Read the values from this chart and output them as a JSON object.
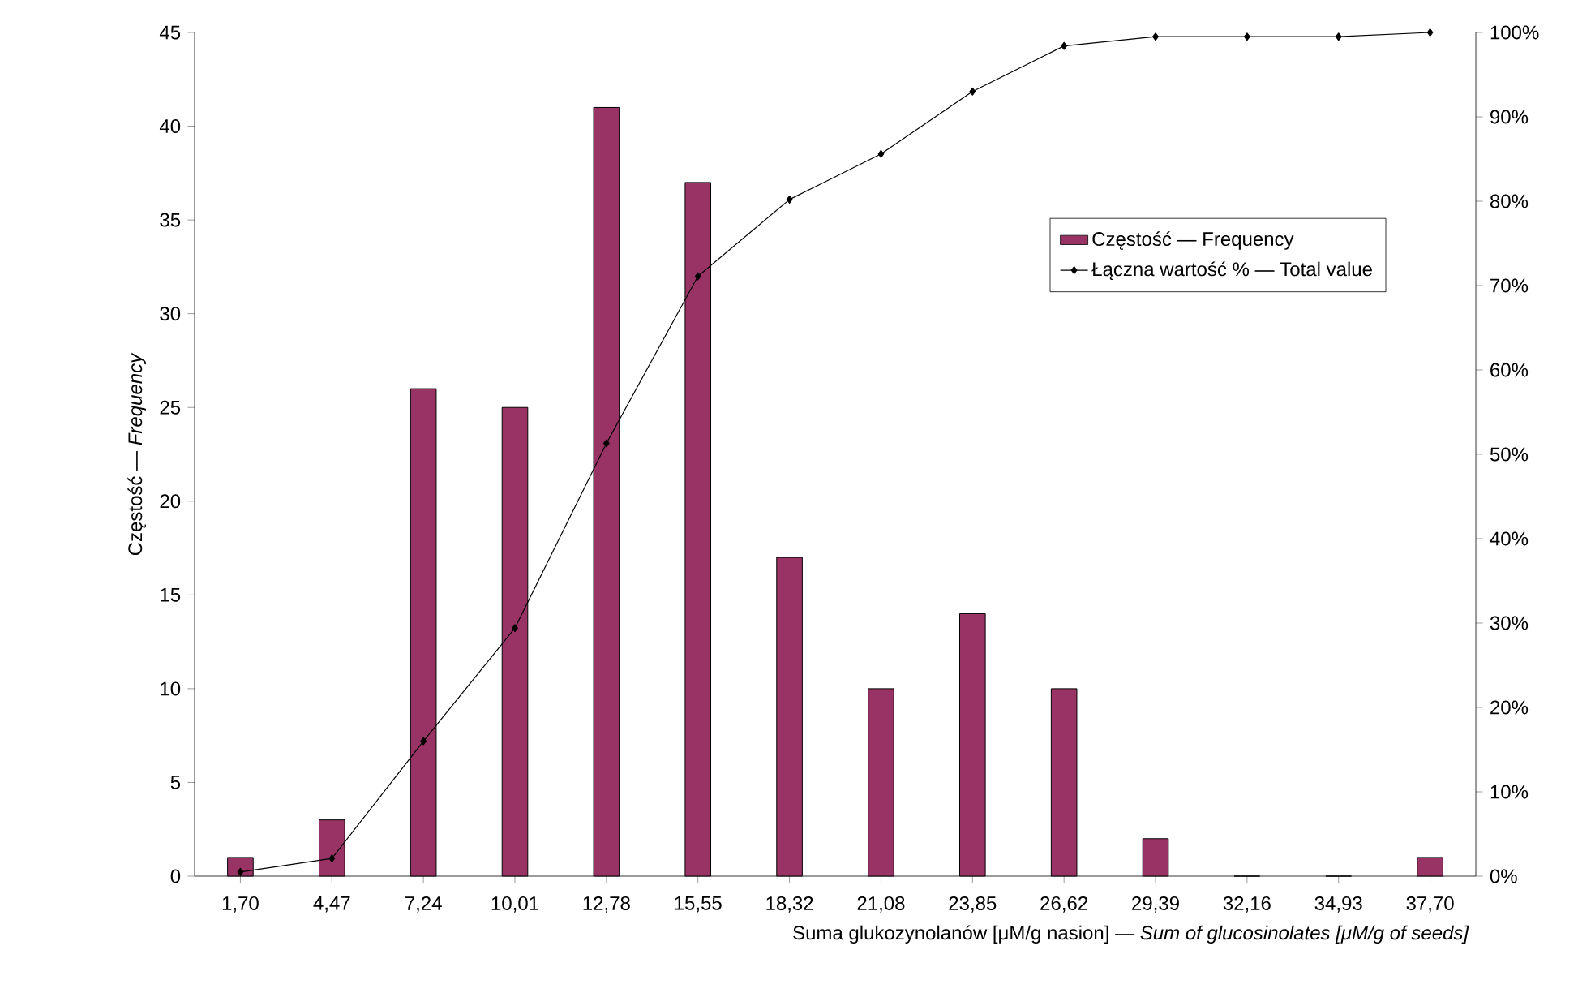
{
  "chart_data": {
    "type": "bar",
    "xlabel": "Suma glukozynolanów [μM/g nasion] — *Sum of glucosinolates [μM/g of seeds]*",
    "ylabel": "Częstość — *Frequency*",
    "categories": [
      "1,70",
      "4,47",
      "7,24",
      "10,01",
      "12,78",
      "15,55",
      "18,32",
      "21,08",
      "23,85",
      "26,62",
      "29,39",
      "32,16",
      "34,93",
      "37,70"
    ],
    "series": [
      {
        "name": "Częstość — Frequency",
        "color": "#993366",
        "values": [
          1,
          3,
          26,
          25,
          41,
          37,
          17,
          10,
          14,
          10,
          2,
          0,
          0,
          1
        ]
      },
      {
        "name": "Łączna wartość % — Total value",
        "type": "line",
        "axis": "y2",
        "color": "#000000",
        "marker": "diamond",
        "values": [
          0.5,
          2.1,
          16.0,
          29.4,
          51.3,
          71.1,
          80.2,
          85.6,
          93.0,
          98.4,
          99.5,
          99.5,
          99.5,
          100
        ]
      }
    ],
    "ylim": [
      0,
      45
    ],
    "yticks": [
      0,
      5,
      10,
      15,
      20,
      25,
      30,
      35,
      40,
      45
    ],
    "y2lim": [
      0,
      100
    ],
    "y2ticks": [
      {
        "value": 0,
        "label": "0%"
      },
      {
        "value": 10,
        "label": "10%"
      },
      {
        "value": 20,
        "label": "20%"
      },
      {
        "value": 30,
        "label": "30%"
      },
      {
        "value": 40,
        "label": "40%"
      },
      {
        "value": 50,
        "label": "50%"
      },
      {
        "value": 60,
        "label": "60%"
      },
      {
        "value": 70,
        "label": "70%"
      },
      {
        "value": 80,
        "label": "80%"
      },
      {
        "value": 90,
        "label": "90%"
      },
      {
        "value": 100,
        "label": "100%"
      }
    ],
    "legend": "top right"
  }
}
